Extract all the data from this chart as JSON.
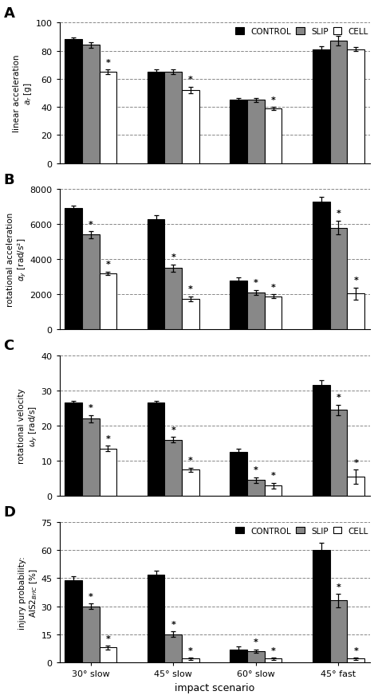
{
  "scenarios": [
    "30° slow",
    "45° slow",
    "60° slow",
    "45° fast"
  ],
  "A_ylim": [
    0,
    100
  ],
  "A_yticks": [
    0,
    20,
    40,
    60,
    80,
    100
  ],
  "A_values": {
    "CONTROL": [
      88,
      65,
      45,
      81
    ],
    "SLIP": [
      84,
      65,
      45,
      87
    ],
    "CELL": [
      65,
      52,
      39,
      81
    ]
  },
  "A_errors": {
    "CONTROL": [
      1.5,
      1.5,
      1.5,
      2.0
    ],
    "SLIP": [
      2.0,
      1.5,
      1.5,
      3.5
    ],
    "CELL": [
      1.5,
      2.5,
      1.0,
      1.5
    ]
  },
  "A_stars": [
    {
      "group": 0,
      "bar": 2,
      "label": "*"
    },
    {
      "group": 1,
      "bar": 2,
      "label": "*"
    },
    {
      "group": 2,
      "bar": 2,
      "label": "*"
    }
  ],
  "B_ylim": [
    0,
    8000
  ],
  "B_yticks": [
    0,
    2000,
    4000,
    6000,
    8000
  ],
  "B_values": {
    "CONTROL": [
      6900,
      6300,
      2800,
      7300
    ],
    "SLIP": [
      5400,
      3500,
      2100,
      5800
    ],
    "CELL": [
      3200,
      1750,
      1900,
      2050
    ]
  },
  "B_errors": {
    "CONTROL": [
      150,
      200,
      150,
      250
    ],
    "SLIP": [
      200,
      200,
      150,
      400
    ],
    "CELL": [
      100,
      150,
      100,
      350
    ]
  },
  "B_stars": [
    {
      "group": 0,
      "bar": 1,
      "label": "*"
    },
    {
      "group": 0,
      "bar": 2,
      "label": "*"
    },
    {
      "group": 1,
      "bar": 1,
      "label": "*"
    },
    {
      "group": 1,
      "bar": 2,
      "label": "*"
    },
    {
      "group": 2,
      "bar": 1,
      "label": "*"
    },
    {
      "group": 2,
      "bar": 2,
      "label": "*"
    },
    {
      "group": 3,
      "bar": 1,
      "label": "*"
    },
    {
      "group": 3,
      "bar": 2,
      "label": "*"
    }
  ],
  "C_ylim": [
    0,
    40
  ],
  "C_yticks": [
    0,
    10,
    20,
    30,
    40
  ],
  "C_values": {
    "CONTROL": [
      26.5,
      26.5,
      12.5,
      31.5
    ],
    "SLIP": [
      22.0,
      16.0,
      4.5,
      24.5
    ],
    "CELL": [
      13.5,
      7.5,
      3.0,
      5.5
    ]
  },
  "C_errors": {
    "CONTROL": [
      0.5,
      0.5,
      1.0,
      1.5
    ],
    "SLIP": [
      1.0,
      0.8,
      0.8,
      1.5
    ],
    "CELL": [
      0.8,
      0.6,
      0.8,
      2.0
    ]
  },
  "C_stars": [
    {
      "group": 0,
      "bar": 1,
      "label": "*"
    },
    {
      "group": 0,
      "bar": 2,
      "label": "*"
    },
    {
      "group": 1,
      "bar": 1,
      "label": "*"
    },
    {
      "group": 1,
      "bar": 2,
      "label": "*"
    },
    {
      "group": 2,
      "bar": 1,
      "label": "*"
    },
    {
      "group": 2,
      "bar": 2,
      "label": "*"
    },
    {
      "group": 3,
      "bar": 1,
      "label": "*"
    },
    {
      "group": 3,
      "bar": 2,
      "label": "*"
    }
  ],
  "D_ylim": [
    0,
    75
  ],
  "D_yticks": [
    0,
    15,
    30,
    45,
    60,
    75
  ],
  "D_values": {
    "CONTROL": [
      44,
      47,
      7,
      60
    ],
    "SLIP": [
      30,
      15,
      6,
      33
    ],
    "CELL": [
      8,
      2,
      2,
      2
    ]
  },
  "D_errors": {
    "CONTROL": [
      2.0,
      2.0,
      1.5,
      4.0
    ],
    "SLIP": [
      1.5,
      1.5,
      1.0,
      3.5
    ],
    "CELL": [
      1.0,
      0.5,
      0.5,
      0.5
    ]
  },
  "D_stars": [
    {
      "group": 0,
      "bar": 1,
      "label": "*"
    },
    {
      "group": 0,
      "bar": 2,
      "label": "*"
    },
    {
      "group": 1,
      "bar": 1,
      "label": "*"
    },
    {
      "group": 1,
      "bar": 2,
      "label": "*"
    },
    {
      "group": 2,
      "bar": 1,
      "label": "*"
    },
    {
      "group": 2,
      "bar": 2,
      "label": "*"
    },
    {
      "group": 3,
      "bar": 1,
      "label": "*"
    },
    {
      "group": 3,
      "bar": 2,
      "label": "*"
    }
  ],
  "bar_colors": {
    "CONTROL": "#000000",
    "SLIP": "#888888",
    "CELL": "#ffffff"
  },
  "bar_edgecolor": "#000000",
  "bar_width": 0.22,
  "show_legend": [
    true,
    false,
    false,
    true
  ],
  "ylabels": [
    "linear acceleration\n$a_r$ [g]",
    "rotational acceleration\n$\\alpha_y$ [rad/s²]",
    "rotational velocity\n$\\omega_y$ [rad/s]",
    "injury probability:\nAIS2$_{BrIC}$ [%]"
  ]
}
